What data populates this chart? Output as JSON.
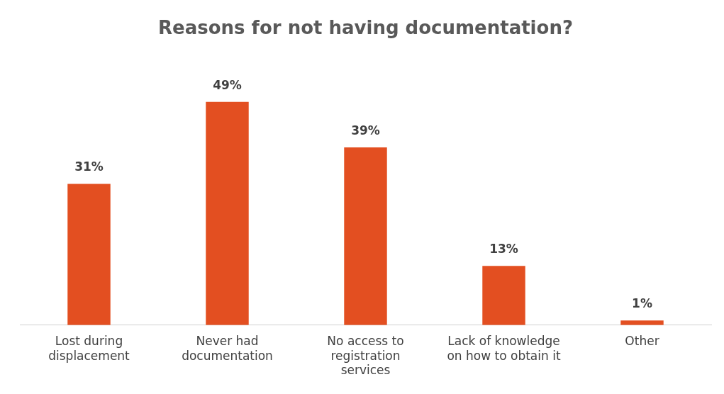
{
  "chart_data": {
    "type": "bar",
    "title": "Reasons for not having documentation?",
    "categories": [
      "Lost during displacement",
      "Never had documentation",
      "No access to registration services",
      "Lack of knowledge on how to obtain it",
      "Other"
    ],
    "values": [
      31,
      49,
      39,
      13,
      1
    ],
    "value_labels": [
      "31%",
      "49%",
      "39%",
      "13%",
      "1%"
    ],
    "color": "#e34f21",
    "grid": false,
    "legend": false
  }
}
